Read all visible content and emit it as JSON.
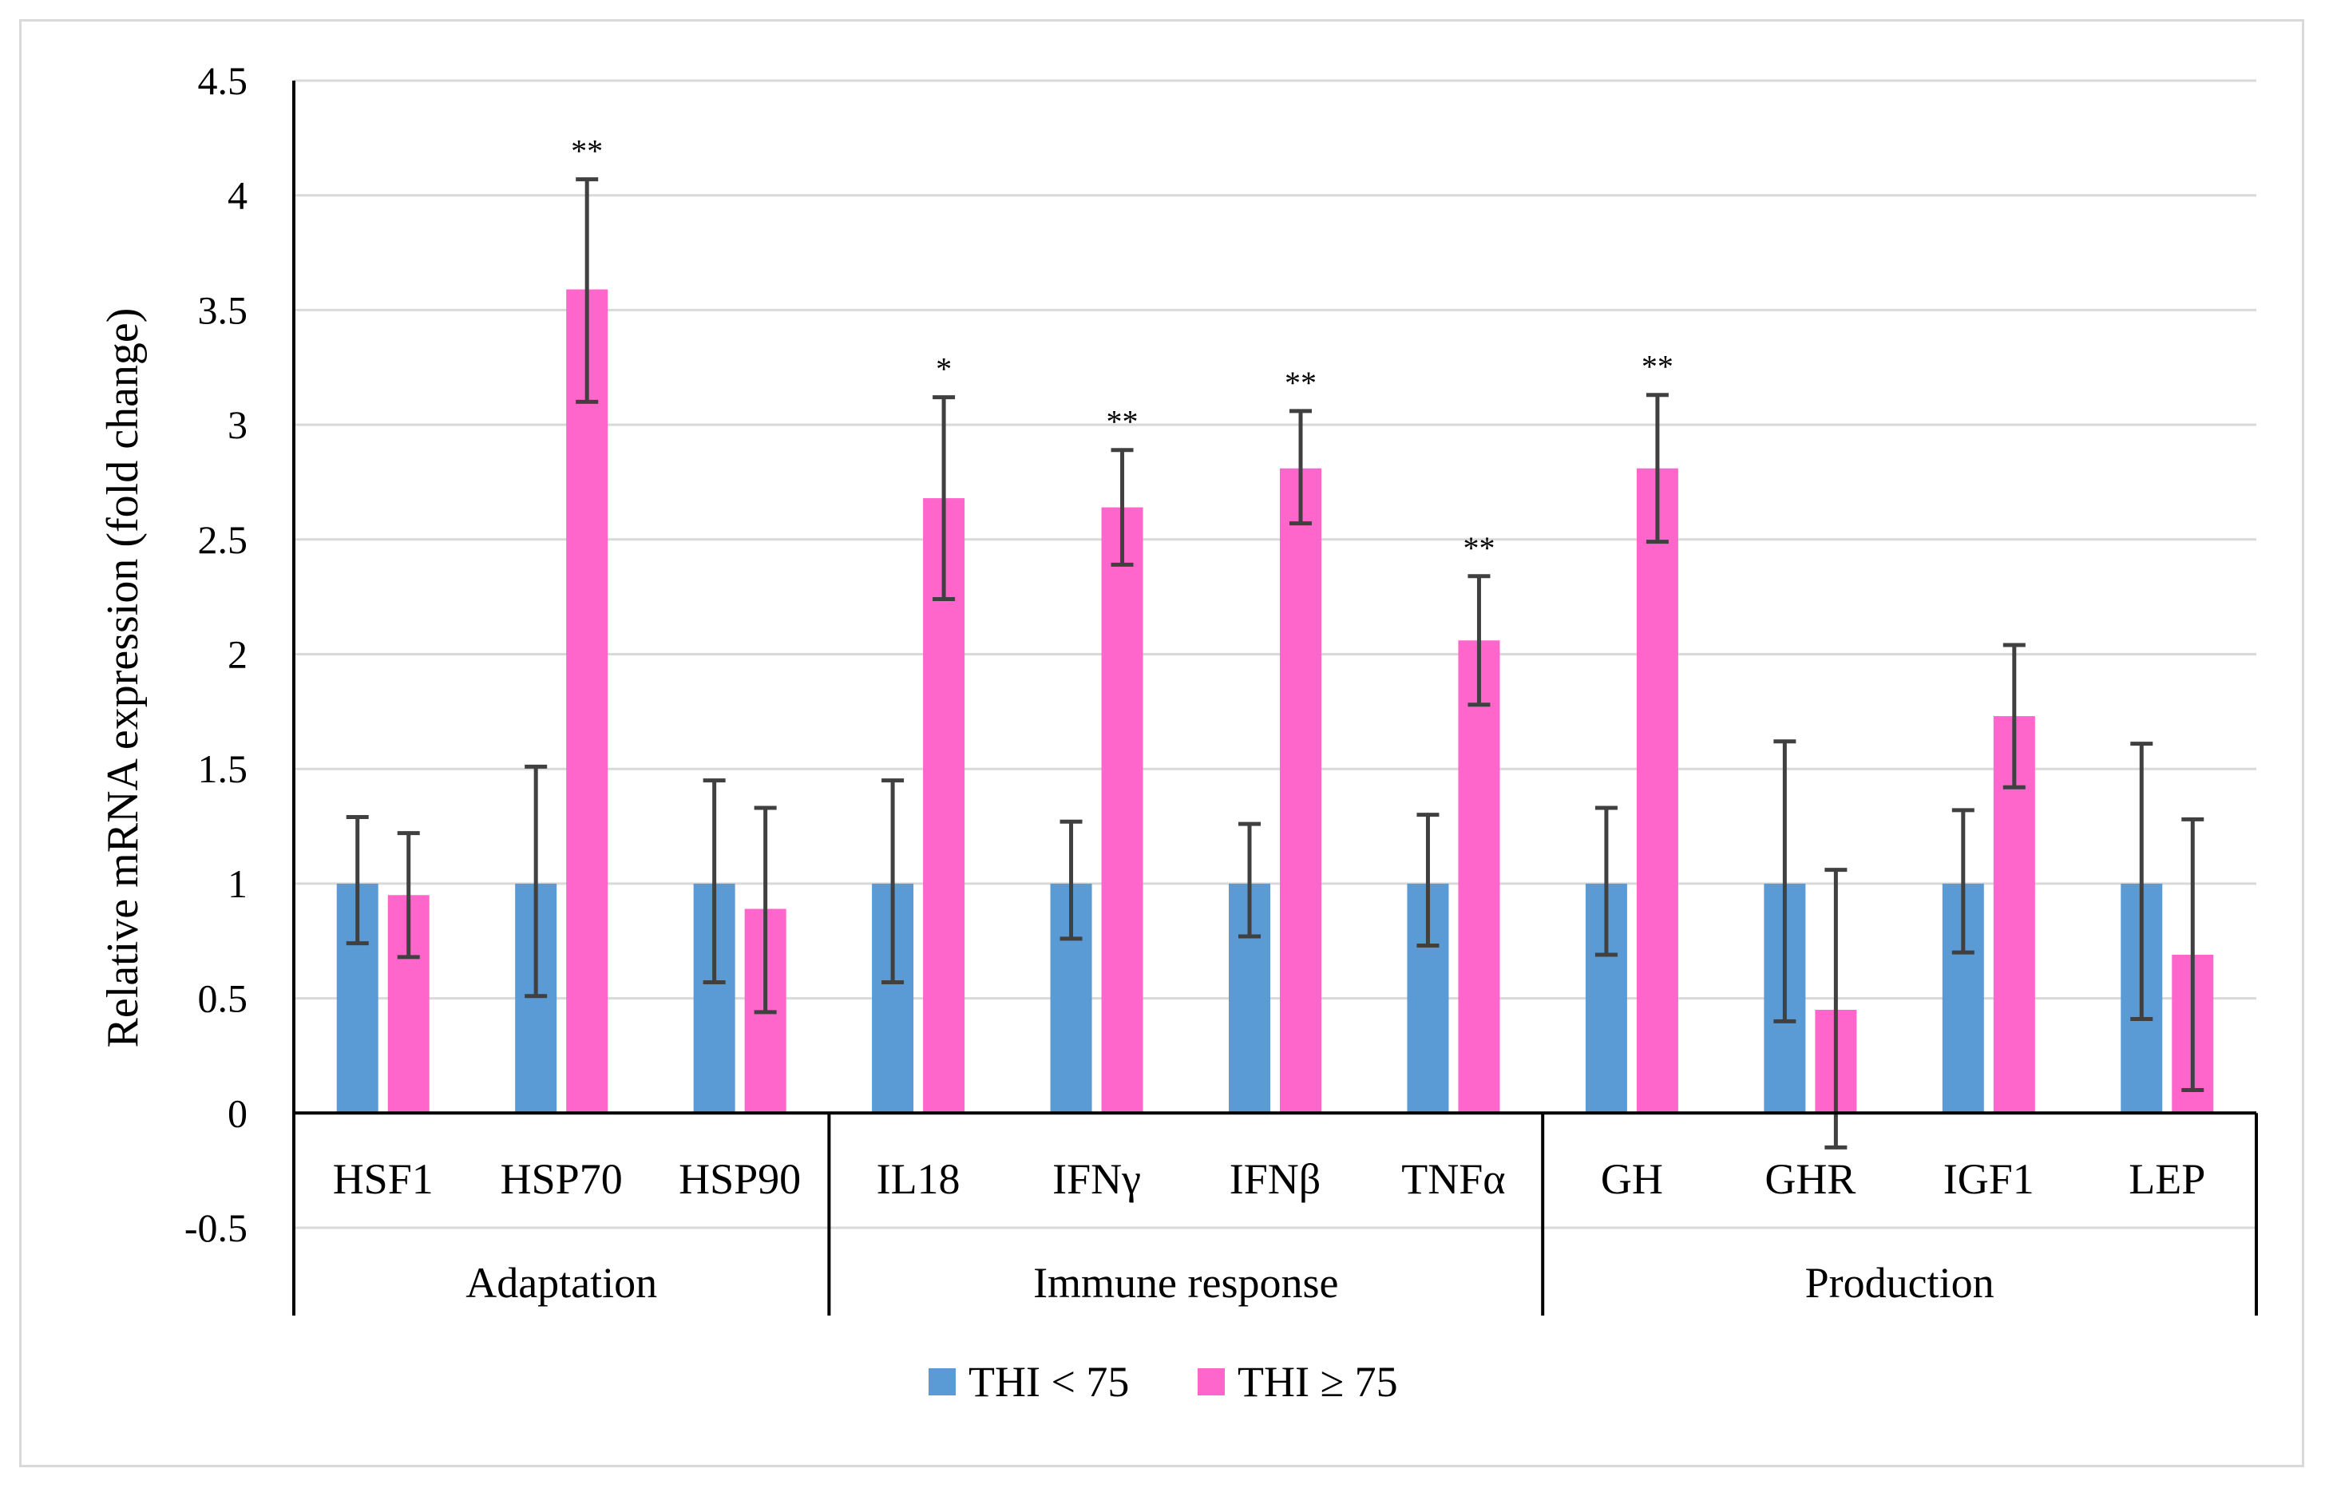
{
  "chart_data": {
    "type": "bar",
    "title": "",
    "xlabel": "",
    "ylabel": "Relative mRNA expression (fold change)",
    "ylim": [
      -0.5,
      4.5
    ],
    "yticks": [
      -0.5,
      0,
      0.5,
      1,
      1.5,
      2,
      2.5,
      3,
      3.5,
      4,
      4.5
    ],
    "ytick_labels": [
      "-0.5",
      "0",
      "0.5",
      "1",
      "1.5",
      "2",
      "2.5",
      "3",
      "3.5",
      "4",
      "4.5"
    ],
    "grid": true,
    "categories": [
      "HSF1",
      "HSP70",
      "HSP90",
      "IL18",
      "IFNγ",
      "IFNβ",
      "TNFα",
      "GH",
      "GHR",
      "IGF1",
      "LEP"
    ],
    "groups": [
      {
        "name": "Adaptation",
        "count": 3
      },
      {
        "name": "Immune response",
        "count": 4
      },
      {
        "name": "Production",
        "count": 4
      }
    ],
    "series": [
      {
        "name": "THI < 75",
        "color": "#5b9bd5",
        "values": [
          1,
          1,
          1,
          1,
          1,
          1,
          1,
          1,
          1,
          1,
          1
        ],
        "err_low": [
          0.74,
          0.51,
          0.57,
          0.57,
          0.76,
          0.77,
          0.73,
          0.69,
          0.4,
          0.7,
          0.41
        ],
        "err_high": [
          1.29,
          1.51,
          1.45,
          1.45,
          1.27,
          1.26,
          1.3,
          1.33,
          1.62,
          1.32,
          1.61
        ]
      },
      {
        "name": "THI ≥ 75",
        "color": "#ff66cc",
        "values": [
          0.95,
          3.59,
          0.89,
          2.68,
          2.64,
          2.81,
          2.06,
          2.81,
          0.45,
          1.73,
          0.69
        ],
        "err_low": [
          0.68,
          3.1,
          0.44,
          2.24,
          2.39,
          2.57,
          1.78,
          2.49,
          -0.15,
          1.42,
          0.1
        ],
        "err_high": [
          1.22,
          4.07,
          1.33,
          3.12,
          2.89,
          3.06,
          2.34,
          3.13,
          1.06,
          2.04,
          1.28
        ]
      }
    ],
    "significance": [
      "",
      "**",
      "",
      "*",
      "**",
      "**",
      "**",
      "**",
      "",
      "",
      ""
    ],
    "legend": {
      "position": "bottom",
      "entries": [
        "THI < 75",
        "THI ≥ 75"
      ]
    }
  }
}
